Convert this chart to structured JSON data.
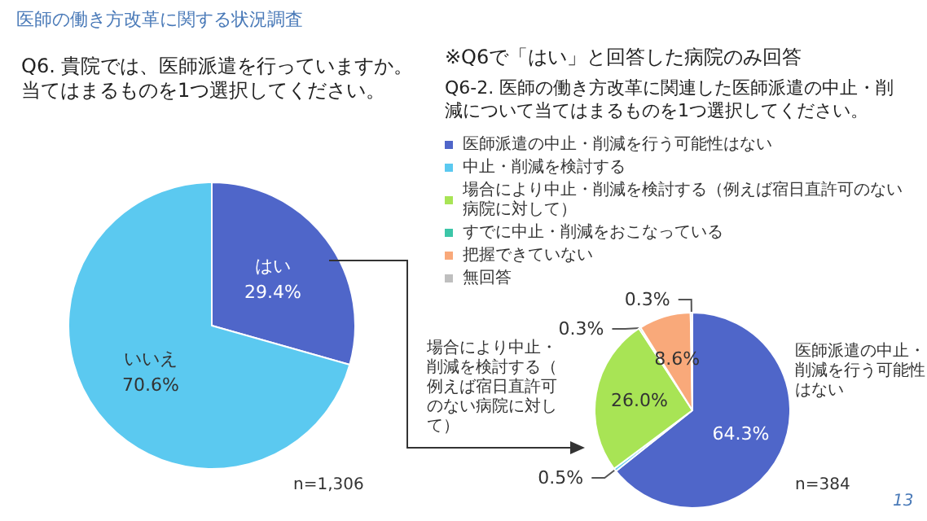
{
  "chart_data": [
    {
      "type": "pie",
      "title": "Q6. 貴院では、医師派遣を行っていますか。当てはまるものを1つ選択してください。",
      "categories": [
        "はい",
        "いいえ"
      ],
      "values": [
        29.4,
        70.6
      ],
      "colors": [
        "#4f66c9",
        "#5bc9f0"
      ],
      "value_labels": [
        "29.4%",
        "70.6%"
      ],
      "legend": false,
      "annotations": [
        "医師の働き方改革に関する状況調査",
        "n=1,306"
      ]
    },
    {
      "type": "pie",
      "subtitle": "※Q6で「はい」と回答した病院のみ回答",
      "title": "Q6-2. 医師の働き方改革に関連した医師派遣の中止・削減について当てはまるものを1つ選択してください。",
      "categories": [
        "医師派遣の中止・削減を行う可能性はない",
        "中止・削減を検討する",
        "場合により中止・削減を検討する（例えば宿日直許可のない病院に対して）",
        "すでに中止・削減をおこなっている",
        "把握できていない",
        "無回答"
      ],
      "values": [
        64.3,
        0.5,
        26.0,
        0.3,
        8.6,
        0.3
      ],
      "colors": [
        "#4f66c9",
        "#5bc9f0",
        "#a8e455",
        "#3cc6a8",
        "#f9a97a",
        "#bfbfbf"
      ],
      "value_labels": [
        "64.3%",
        "0.5%",
        "26.0%",
        "0.3%",
        "8.6%",
        "0.3%"
      ],
      "legend": "top",
      "annotations": [
        "医師派遣の中止・削減を行う可能性はない",
        "場合により中止・削減を検討する（例えば宿日直許可のない病院に対して）",
        "n=384",
        "13"
      ]
    }
  ]
}
